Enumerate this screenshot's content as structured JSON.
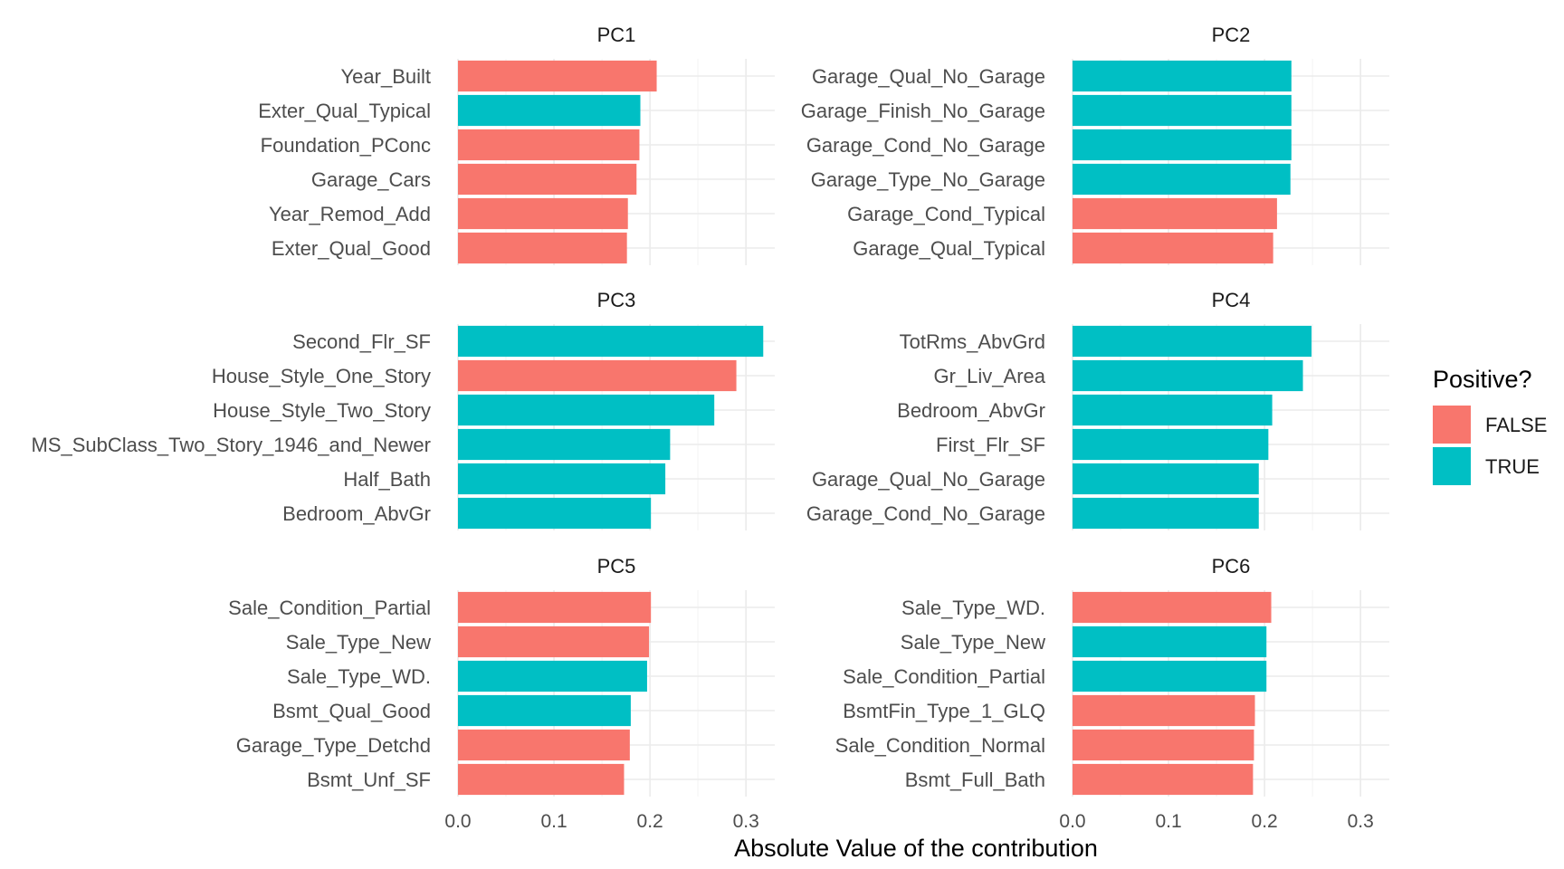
{
  "chart_data": {
    "type": "bar",
    "orientation": "horizontal",
    "xlabel": "Absolute Value of the contribution",
    "xlim": [
      0,
      0.33
    ],
    "xticks": [
      0.0,
      0.1,
      0.2,
      0.3
    ],
    "xtick_labels": [
      "0.0",
      "0.1",
      "0.2",
      "0.3"
    ],
    "grid": true,
    "legend": {
      "title": "Positive?",
      "position": "right",
      "entries": [
        {
          "label": "FALSE",
          "color": "#F8766D"
        },
        {
          "label": "TRUE",
          "color": "#00BFC4"
        }
      ]
    },
    "panels": [
      {
        "title": "PC1",
        "categories": [
          "Year_Built",
          "Exter_Qual_Typical",
          "Foundation_PConc",
          "Garage_Cars",
          "Year_Remod_Add",
          "Exter_Qual_Good"
        ],
        "values": [
          0.207,
          0.19,
          0.189,
          0.186,
          0.177,
          0.176
        ],
        "positive": [
          false,
          true,
          false,
          false,
          false,
          false
        ]
      },
      {
        "title": "PC2",
        "categories": [
          "Garage_Qual_No_Garage",
          "Garage_Finish_No_Garage",
          "Garage_Cond_No_Garage",
          "Garage_Type_No_Garage",
          "Garage_Cond_Typical",
          "Garage_Qual_Typical"
        ],
        "values": [
          0.228,
          0.228,
          0.228,
          0.227,
          0.213,
          0.209
        ],
        "positive": [
          true,
          true,
          true,
          true,
          false,
          false
        ]
      },
      {
        "title": "PC3",
        "categories": [
          "Second_Flr_SF",
          "House_Style_One_Story",
          "House_Style_Two_Story",
          "MS_SubClass_Two_Story_1946_and_Newer",
          "Half_Bath",
          "Bedroom_AbvGr"
        ],
        "values": [
          0.318,
          0.29,
          0.267,
          0.221,
          0.216,
          0.201
        ],
        "positive": [
          true,
          false,
          true,
          true,
          true,
          true
        ]
      },
      {
        "title": "PC4",
        "categories": [
          "TotRms_AbvGrd",
          "Gr_Liv_Area",
          "Bedroom_AbvGr",
          "First_Flr_SF",
          "Garage_Qual_No_Garage",
          "Garage_Cond_No_Garage"
        ],
        "values": [
          0.249,
          0.24,
          0.208,
          0.204,
          0.194,
          0.194
        ],
        "positive": [
          true,
          true,
          true,
          true,
          true,
          true
        ]
      },
      {
        "title": "PC5",
        "categories": [
          "Sale_Condition_Partial",
          "Sale_Type_New",
          "Sale_Type_WD.",
          "Bsmt_Qual_Good",
          "Garage_Type_Detchd",
          "Bsmt_Unf_SF"
        ],
        "values": [
          0.201,
          0.199,
          0.197,
          0.18,
          0.179,
          0.173
        ],
        "positive": [
          false,
          false,
          true,
          true,
          false,
          false
        ]
      },
      {
        "title": "PC6",
        "categories": [
          "Sale_Type_WD.",
          "Sale_Type_New",
          "Sale_Condition_Partial",
          "BsmtFin_Type_1_GLQ",
          "Sale_Condition_Normal",
          "Bsmt_Full_Bath"
        ],
        "values": [
          0.207,
          0.202,
          0.202,
          0.19,
          0.189,
          0.188
        ],
        "positive": [
          false,
          true,
          true,
          false,
          false,
          false
        ]
      }
    ]
  }
}
